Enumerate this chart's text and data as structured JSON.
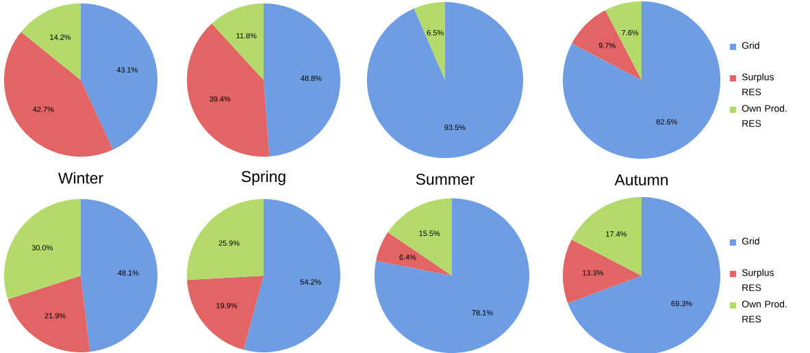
{
  "chart_data": [
    {
      "type": "pie",
      "title": "Winter",
      "values": [
        43.1,
        42.7,
        14.2
      ],
      "value_labels": [
        "43.1%",
        "42.7%",
        "14.2%"
      ],
      "colors": [
        "#6f9de3",
        "#e26464",
        "#b4da6c"
      ]
    },
    {
      "type": "pie",
      "title": "Spring",
      "values": [
        48.8,
        39.4,
        11.8
      ],
      "value_labels": [
        "48.8%",
        "39.4%",
        "11.8%"
      ],
      "colors": [
        "#6f9de3",
        "#e26464",
        "#b4da6c"
      ]
    },
    {
      "type": "pie",
      "title": "Summer",
      "values": [
        93.5,
        0,
        6.5
      ],
      "value_labels": [
        "93.5%",
        null,
        "6.5%"
      ],
      "colors": [
        "#6f9de3",
        "#e26464",
        "#b4da6c"
      ]
    },
    {
      "type": "pie",
      "title": "Autumn",
      "categories": [
        "Grid",
        "Surplus RES",
        "Own Prod. RES"
      ],
      "values": [
        82.6,
        9.7,
        7.6
      ],
      "value_labels": [
        "82.6%",
        "9.7%",
        "7.6%"
      ],
      "colors": [
        "#6f9de3",
        "#e26464",
        "#b4da6c"
      ],
      "legend": "right"
    },
    {
      "type": "pie",
      "values": [
        48.1,
        21.9,
        30.0
      ],
      "value_labels": [
        "48.1%",
        "21.9%",
        "30.0%"
      ],
      "colors": [
        "#6f9de3",
        "#e26464",
        "#b4da6c"
      ]
    },
    {
      "type": "pie",
      "values": [
        54.2,
        19.9,
        25.9
      ],
      "value_labels": [
        "54.2%",
        "19.9%",
        "25.9%"
      ],
      "colors": [
        "#6f9de3",
        "#e26464",
        "#b4da6c"
      ]
    },
    {
      "type": "pie",
      "values": [
        78.1,
        6.4,
        15.5
      ],
      "value_labels": [
        "78.1%",
        "6.4%",
        "15.5%"
      ],
      "colors": [
        "#6f9de3",
        "#e26464",
        "#b4da6c"
      ]
    },
    {
      "type": "pie",
      "categories": [
        "Grid",
        "Surplus RES",
        "Own Prod. RES"
      ],
      "values": [
        69.3,
        13.3,
        17.4
      ],
      "value_labels": [
        "69.3%",
        "13.3%",
        "17.4%"
      ],
      "colors": [
        "#6f9de3",
        "#e26464",
        "#b4da6c"
      ],
      "legend": "right"
    }
  ]
}
